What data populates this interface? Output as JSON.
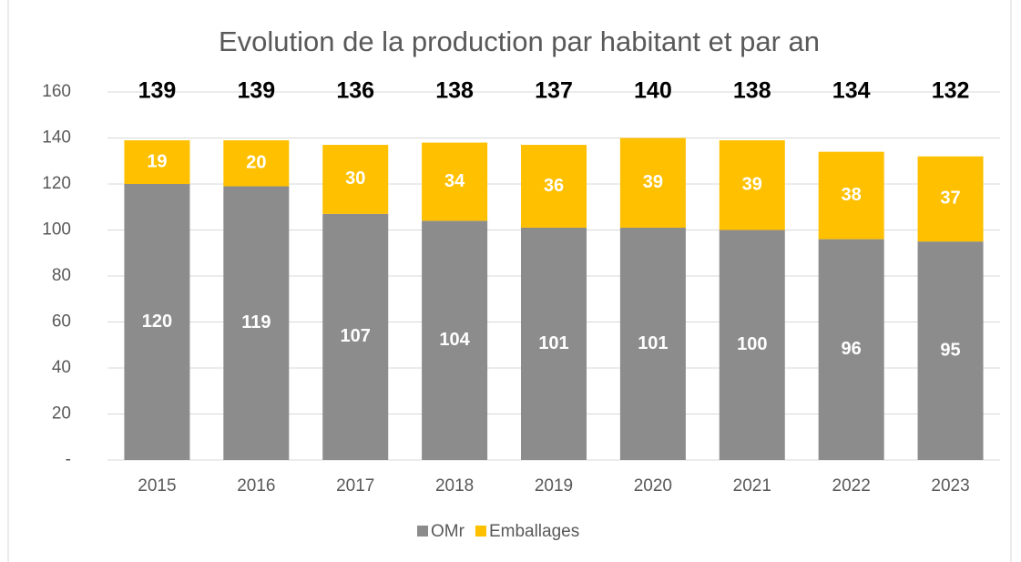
{
  "chart_data": {
    "type": "stacked_bar",
    "title": "Evolution de la production par habitant et par an",
    "categories": [
      "2015",
      "2016",
      "2017",
      "2018",
      "2019",
      "2020",
      "2021",
      "2022",
      "2023"
    ],
    "series": [
      {
        "name": "OMr",
        "color": "#8c8c8c",
        "values": [
          120,
          119,
          107,
          104,
          101,
          101,
          100,
          96,
          95
        ]
      },
      {
        "name": "Emballages",
        "color": "#ffc000",
        "values": [
          19,
          20,
          30,
          34,
          36,
          39,
          39,
          38,
          37
        ]
      }
    ],
    "totals": [
      139,
      139,
      136,
      138,
      137,
      140,
      138,
      134,
      132
    ],
    "ylim": [
      0,
      160
    ],
    "yticks": [
      {
        "value": 0,
        "label": "-"
      },
      20,
      40,
      60,
      80,
      100,
      120,
      140,
      160
    ],
    "grid": true,
    "legend": "bottom"
  }
}
